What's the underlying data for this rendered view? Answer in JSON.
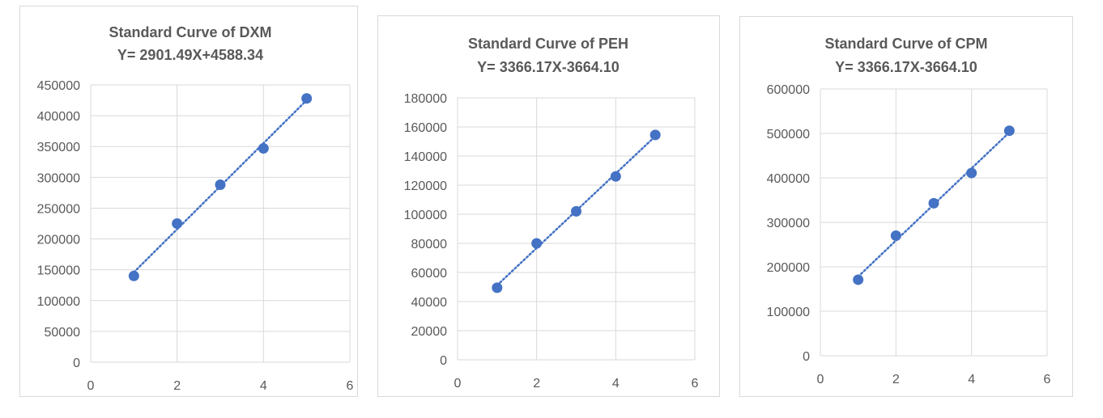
{
  "chart_data": [
    {
      "type": "scatter",
      "title": "Standard Curve of DXM",
      "subtitle": "Y= 2901.49X+4588.34",
      "x": [
        1,
        2,
        3,
        4,
        5
      ],
      "y": [
        140000,
        225000,
        288000,
        347000,
        428000
      ],
      "xlim": [
        0,
        6
      ],
      "ylim": [
        0,
        450000
      ],
      "xticks": [
        "0",
        "2",
        "4",
        "6"
      ],
      "yticks": [
        "0",
        "50000",
        "100000",
        "150000",
        "200000",
        "250000",
        "300000",
        "350000",
        "400000",
        "450000"
      ],
      "trendline": "linear",
      "grid": true,
      "color": "#4472c4"
    },
    {
      "type": "scatter",
      "title": "Standard Curve of PEH",
      "subtitle": "Y= 3366.17X-3664.10",
      "x": [
        1,
        2,
        3,
        4,
        5
      ],
      "y": [
        49500,
        80000,
        102000,
        126000,
        154500
      ],
      "xlim": [
        0,
        6
      ],
      "ylim": [
        0,
        180000
      ],
      "xticks": [
        "0",
        "2",
        "4",
        "6"
      ],
      "yticks": [
        "0",
        "20000",
        "40000",
        "60000",
        "80000",
        "100000",
        "120000",
        "140000",
        "160000",
        "180000"
      ],
      "trendline": "linear",
      "grid": true,
      "color": "#4472c4"
    },
    {
      "type": "scatter",
      "title": "Standard Curve of CPM",
      "subtitle": "Y= 3366.17X-3664.10",
      "x": [
        1,
        2,
        3,
        4,
        5
      ],
      "y": [
        171000,
        270000,
        343000,
        411000,
        506000
      ],
      "xlim": [
        0,
        6
      ],
      "ylim": [
        0,
        600000
      ],
      "xticks": [
        "0",
        "2",
        "4",
        "6"
      ],
      "yticks": [
        "0",
        "100000",
        "200000",
        "300000",
        "400000",
        "500000",
        "600000"
      ],
      "trendline": "linear",
      "grid": true,
      "color": "#4472c4"
    }
  ]
}
